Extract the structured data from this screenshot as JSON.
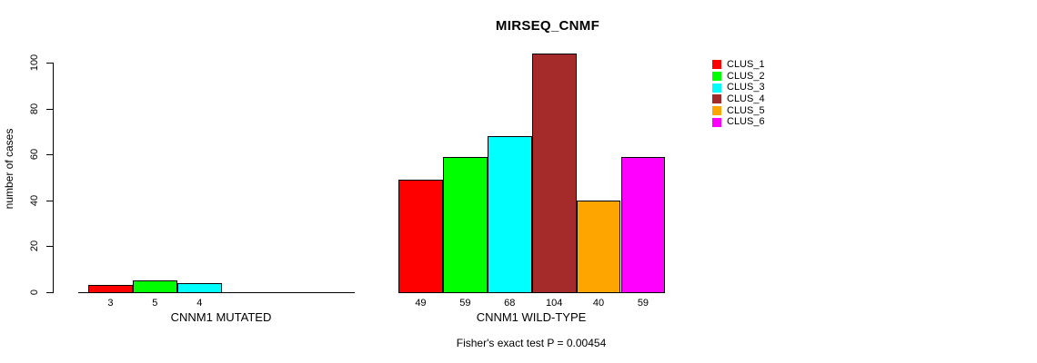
{
  "title": "MIRSEQ_CNMF",
  "subtitle": "Fisher's exact test P = 0.00454",
  "y_axis": {
    "label": "number of cases"
  },
  "legend": {
    "entries": [
      {
        "label": "CLUS_1",
        "color": "#FF0000"
      },
      {
        "label": "CLUS_2",
        "color": "#00FF00"
      },
      {
        "label": "CLUS_3",
        "color": "#00FFFF"
      },
      {
        "label": "CLUS_4",
        "color": "#A52A2A"
      },
      {
        "label": "CLUS_5",
        "color": "#FFA500"
      },
      {
        "label": "CLUS_6",
        "color": "#FF00FF"
      }
    ]
  },
  "chart_data": {
    "type": "bar",
    "title": "MIRSEQ_CNMF",
    "ylabel": "number of cases",
    "ylim": [
      0,
      100
    ],
    "yticks": [
      0,
      20,
      40,
      60,
      80,
      100
    ],
    "grid": false,
    "legend_position": "right",
    "clusters": [
      "CLUS_1",
      "CLUS_2",
      "CLUS_3",
      "CLUS_4",
      "CLUS_5",
      "CLUS_6"
    ],
    "cluster_colors": [
      "#FF0000",
      "#00FF00",
      "#00FFFF",
      "#A52A2A",
      "#FFA500",
      "#FF00FF"
    ],
    "groups": [
      {
        "label": "CNNM1 MUTATED",
        "values": [
          3,
          5,
          4,
          null,
          null,
          null
        ]
      },
      {
        "label": "CNNM1 WILD-TYPE",
        "values": [
          49,
          59,
          68,
          104,
          40,
          59
        ]
      }
    ],
    "annotation": "Fisher's exact test P = 0.00454"
  }
}
